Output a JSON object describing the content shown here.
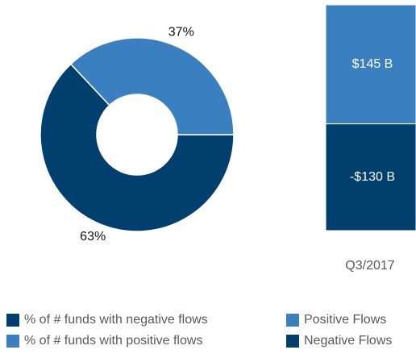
{
  "chart_data": [
    {
      "type": "donut",
      "categories": [
        "% of # funds with negative flows",
        "% of # funds with positive flows"
      ],
      "values": [
        63,
        37
      ],
      "value_labels": [
        "63%",
        "37%"
      ],
      "colors": [
        "#003f6e",
        "#3a7fbf"
      ],
      "legend": "bottom-left"
    },
    {
      "type": "stacked-bar",
      "categories": [
        "Q3/2017"
      ],
      "series": [
        {
          "name": "Positive Flows",
          "color": "#3a7fbf",
          "values": [
            145
          ],
          "value_labels": [
            "$145 B"
          ]
        },
        {
          "name": "Negative Flows",
          "color": "#003f6e",
          "values": [
            -130
          ],
          "value_labels": [
            "-$130 B"
          ]
        }
      ],
      "ylim": [
        -130,
        145
      ],
      "legend": "bottom-right"
    }
  ]
}
